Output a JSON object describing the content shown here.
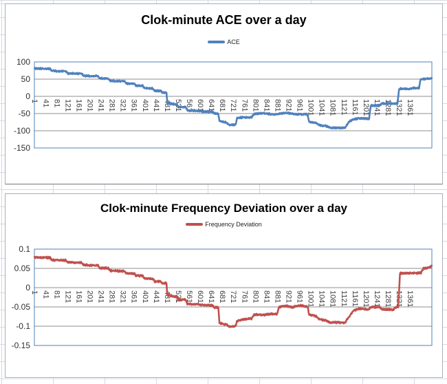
{
  "chart_data": [
    {
      "type": "line",
      "title": "Clok-minute ACE over a day",
      "legend_position": "top-center",
      "grid": "horizontal",
      "x_axis": {
        "min": 1,
        "max": 1440,
        "tick_labels": [
          "1",
          "41",
          "81",
          "121",
          "161",
          "201",
          "241",
          "281",
          "321",
          "361",
          "401",
          "441",
          "481",
          "521",
          "561",
          "601",
          "641",
          "681",
          "721",
          "761",
          "801",
          "841",
          "881",
          "921",
          "961",
          "1001",
          "1041",
          "1081",
          "1121",
          "1161",
          "1201",
          "1241",
          "1281",
          "1321",
          "1361"
        ]
      },
      "y_axis": {
        "min": -150,
        "max": 100,
        "tick_step": 50,
        "tick_labels": [
          "100",
          "50",
          "0",
          "-50",
          "-100",
          "-150"
        ]
      },
      "series": [
        {
          "name": "ACE",
          "color": "#4F81BD",
          "noise_amplitude": 2.2,
          "keypoints_minute_value": [
            [
              1,
              81
            ],
            [
              45,
              80
            ],
            [
              58,
              80
            ],
            [
              63,
              74
            ],
            [
              105,
              73
            ],
            [
              115,
              73
            ],
            [
              120,
              67
            ],
            [
              155,
              66
            ],
            [
              172,
              66
            ],
            [
              178,
              60
            ],
            [
              210,
              59
            ],
            [
              230,
              59
            ],
            [
              237,
              52
            ],
            [
              268,
              52
            ],
            [
              275,
              45
            ],
            [
              305,
              44
            ],
            [
              327,
              44
            ],
            [
              333,
              37
            ],
            [
              363,
              37
            ],
            [
              369,
              31
            ],
            [
              393,
              31
            ],
            [
              399,
              24
            ],
            [
              430,
              23
            ],
            [
              436,
              16
            ],
            [
              459,
              16
            ],
            [
              463,
              11
            ],
            [
              479,
              11
            ],
            [
              482,
              -19
            ],
            [
              502,
              -22
            ],
            [
              517,
              -24
            ],
            [
              521,
              -31
            ],
            [
              549,
              -31
            ],
            [
              554,
              -41
            ],
            [
              592,
              -42
            ],
            [
              606,
              -44
            ],
            [
              646,
              -45
            ],
            [
              652,
              -50
            ],
            [
              667,
              -51
            ],
            [
              671,
              -72
            ],
            [
              696,
              -76
            ],
            [
              706,
              -83
            ],
            [
              729,
              -83
            ],
            [
              735,
              -63
            ],
            [
              760,
              -61
            ],
            [
              788,
              -61
            ],
            [
              796,
              -51
            ],
            [
              830,
              -49
            ],
            [
              870,
              -53
            ],
            [
              910,
              -48
            ],
            [
              950,
              -52
            ],
            [
              989,
              -52
            ],
            [
              996,
              -74
            ],
            [
              1021,
              -77
            ],
            [
              1033,
              -84
            ],
            [
              1056,
              -86
            ],
            [
              1071,
              -91
            ],
            [
              1126,
              -92
            ],
            [
              1134,
              -82
            ],
            [
              1143,
              -72
            ],
            [
              1156,
              -67
            ],
            [
              1176,
              -64
            ],
            [
              1213,
              -65
            ],
            [
              1219,
              -27
            ],
            [
              1253,
              -26
            ],
            [
              1259,
              -21
            ],
            [
              1316,
              -21
            ],
            [
              1322,
              22
            ],
            [
              1363,
              22
            ],
            [
              1371,
              24
            ],
            [
              1394,
              24
            ],
            [
              1400,
              50
            ],
            [
              1426,
              51
            ],
            [
              1440,
              53
            ]
          ]
        }
      ]
    },
    {
      "type": "line",
      "title": "Clok-minute Frequency Deviation over a day",
      "legend_position": "top-center",
      "grid": "horizontal",
      "x_axis": {
        "min": 1,
        "max": 1440,
        "tick_labels": [
          "1",
          "41",
          "81",
          "121",
          "161",
          "201",
          "241",
          "281",
          "321",
          "361",
          "401",
          "441",
          "481",
          "521",
          "561",
          "601",
          "641",
          "681",
          "721",
          "761",
          "801",
          "841",
          "881",
          "921",
          "961",
          "1001",
          "1041",
          "1081",
          "1121",
          "1161",
          "1201",
          "1241",
          "1281",
          "1321",
          "1361"
        ]
      },
      "y_axis": {
        "min": -0.15,
        "max": 0.1,
        "tick_step": 0.05,
        "tick_labels": [
          "0.1",
          "0.05",
          "0",
          "-0.05",
          "-0.1",
          "-0.15"
        ]
      },
      "series": [
        {
          "name": "Frequency Deviation",
          "color": "#C0504D",
          "noise_amplitude": 0.0022,
          "keypoints_minute_value": [
            [
              1,
              0.079
            ],
            [
              45,
              0.078
            ],
            [
              58,
              0.078
            ],
            [
              63,
              0.072
            ],
            [
              105,
              0.071
            ],
            [
              115,
              0.071
            ],
            [
              120,
              0.066
            ],
            [
              155,
              0.065
            ],
            [
              172,
              0.065
            ],
            [
              178,
              0.059
            ],
            [
              210,
              0.058
            ],
            [
              230,
              0.058
            ],
            [
              237,
              0.051
            ],
            [
              268,
              0.051
            ],
            [
              275,
              0.044
            ],
            [
              305,
              0.043
            ],
            [
              327,
              0.043
            ],
            [
              333,
              0.037
            ],
            [
              363,
              0.037
            ],
            [
              369,
              0.031
            ],
            [
              393,
              0.031
            ],
            [
              399,
              0.024
            ],
            [
              430,
              0.023
            ],
            [
              436,
              0.016
            ],
            [
              459,
              0.016
            ],
            [
              463,
              0.012
            ],
            [
              479,
              0.012
            ],
            [
              482,
              -0.019
            ],
            [
              502,
              -0.022
            ],
            [
              517,
              -0.024
            ],
            [
              521,
              -0.031
            ],
            [
              549,
              -0.031
            ],
            [
              554,
              -0.042
            ],
            [
              592,
              -0.043
            ],
            [
              606,
              -0.045
            ],
            [
              646,
              -0.046
            ],
            [
              652,
              -0.051
            ],
            [
              667,
              -0.052
            ],
            [
              671,
              -0.092
            ],
            [
              696,
              -0.096
            ],
            [
              706,
              -0.101
            ],
            [
              729,
              -0.1
            ],
            [
              735,
              -0.086
            ],
            [
              760,
              -0.082
            ],
            [
              788,
              -0.08
            ],
            [
              796,
              -0.07
            ],
            [
              830,
              -0.071
            ],
            [
              860,
              -0.068
            ],
            [
              880,
              -0.069
            ],
            [
              886,
              -0.051
            ],
            [
              910,
              -0.047
            ],
            [
              935,
              -0.051
            ],
            [
              960,
              -0.046
            ],
            [
              990,
              -0.049
            ],
            [
              996,
              -0.07
            ],
            [
              1021,
              -0.074
            ],
            [
              1033,
              -0.082
            ],
            [
              1056,
              -0.085
            ],
            [
              1071,
              -0.09
            ],
            [
              1126,
              -0.091
            ],
            [
              1134,
              -0.082
            ],
            [
              1143,
              -0.073
            ],
            [
              1156,
              -0.06
            ],
            [
              1176,
              -0.055
            ],
            [
              1213,
              -0.056
            ],
            [
              1219,
              -0.05
            ],
            [
              1253,
              -0.051
            ],
            [
              1259,
              -0.056
            ],
            [
              1301,
              -0.057
            ],
            [
              1311,
              -0.05
            ],
            [
              1319,
              -0.05
            ],
            [
              1325,
              0.037
            ],
            [
              1401,
              0.038
            ],
            [
              1409,
              0.05
            ],
            [
              1426,
              0.051
            ],
            [
              1440,
              0.056
            ]
          ]
        }
      ]
    }
  ]
}
